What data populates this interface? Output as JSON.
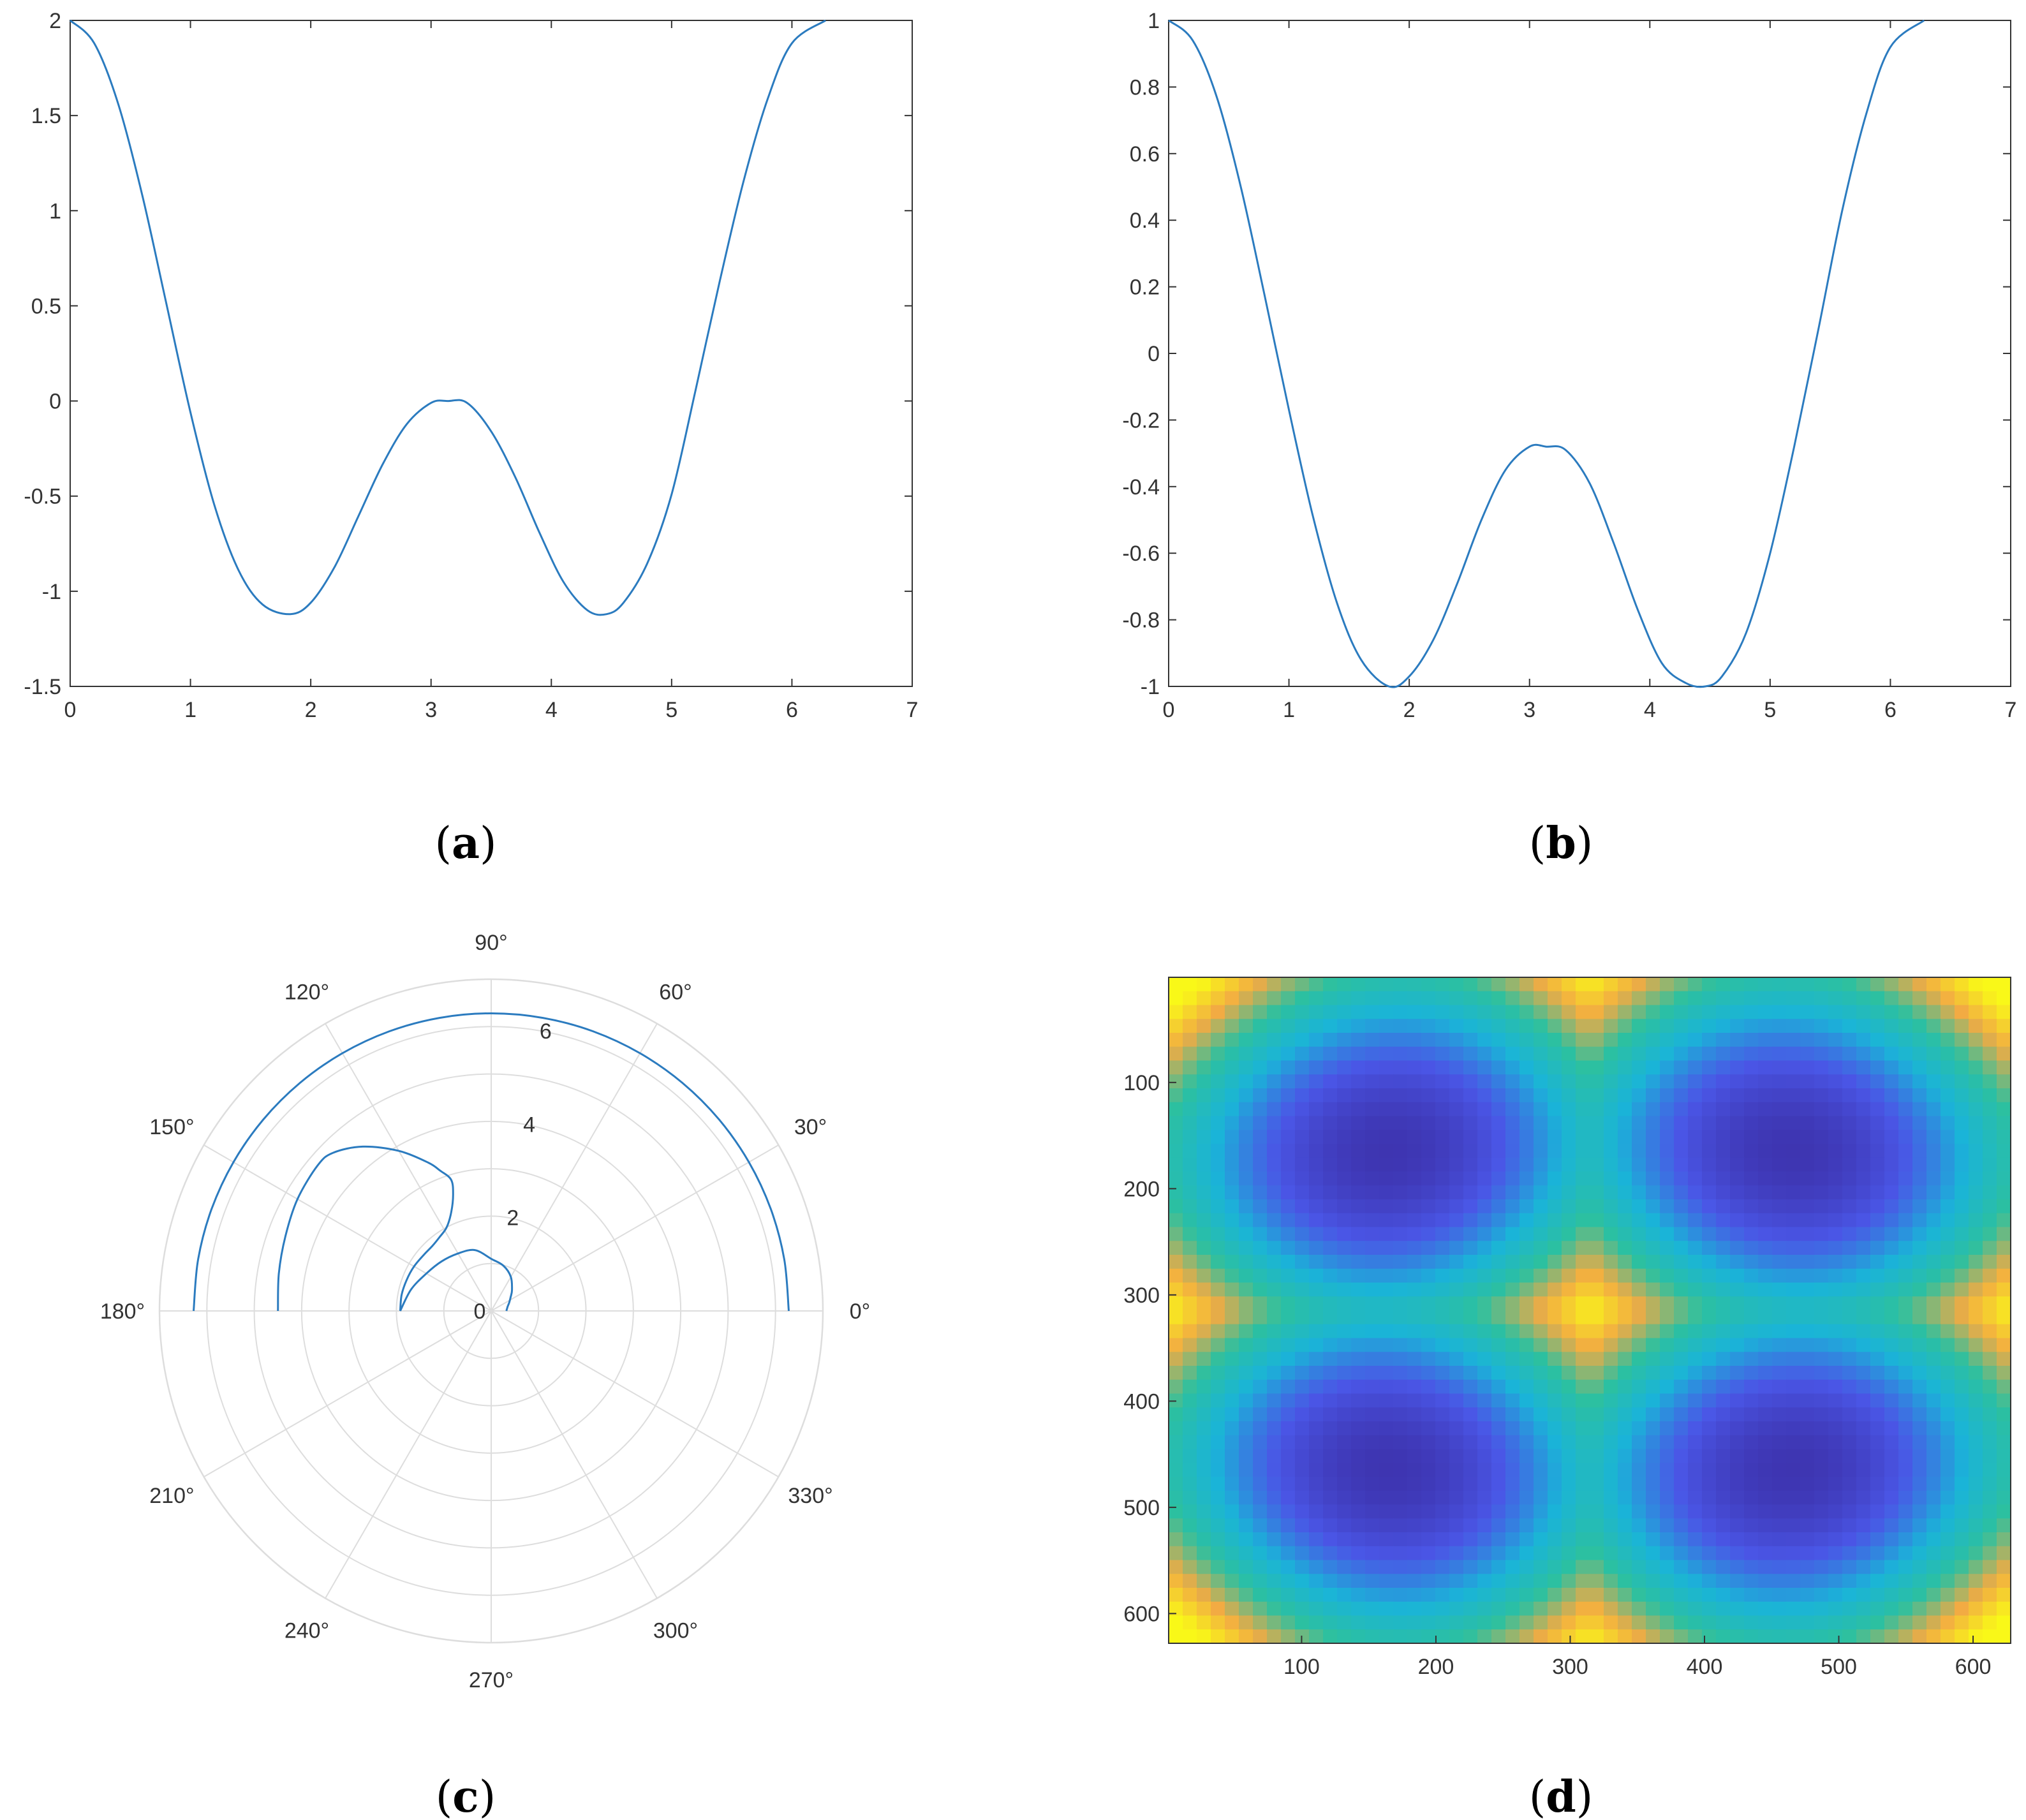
{
  "colors": {
    "line": "#2b7bbf",
    "axis": "#333333",
    "grid": "#dddddd",
    "tick_text": "#333333",
    "colormap": [
      "#3b2ea6",
      "#4a56e6",
      "#1ab4d8",
      "#2cc0a0",
      "#f2ab43",
      "#f9f818"
    ]
  },
  "chart_data": [
    {
      "panel": "a",
      "type": "line",
      "xlim": [
        0,
        7
      ],
      "ylim": [
        -1.5,
        2
      ],
      "xticks": [
        0,
        1,
        2,
        3,
        4,
        5,
        6,
        7
      ],
      "yticks": [
        -1.5,
        -1,
        -0.5,
        0,
        0.5,
        1,
        1.5,
        2
      ],
      "xtick_labels": [
        "0",
        "1",
        "2",
        "3",
        "4",
        "5",
        "6",
        "7"
      ],
      "ytick_labels": [
        "-1.5",
        "-1",
        "-0.5",
        "0",
        "0.5",
        "1",
        "1.5",
        "2"
      ],
      "series": [
        {
          "x": [
            0,
            0.2,
            0.4,
            0.6,
            0.8,
            1.0,
            1.2,
            1.4,
            1.6,
            1.83,
            2.0,
            2.2,
            2.4,
            2.6,
            2.8,
            3.0,
            3.14,
            3.3,
            3.5,
            3.7,
            3.9,
            4.1,
            4.3,
            4.46,
            4.6,
            4.8,
            5.0,
            5.2,
            5.4,
            5.6,
            5.8,
            6.0,
            6.28
          ],
          "y": [
            2,
            1.88,
            1.56,
            1.08,
            0.51,
            -0.06,
            -0.55,
            -0.89,
            -1.07,
            -1.12,
            -1.06,
            -0.87,
            -0.6,
            -0.33,
            -0.12,
            -0.01,
            0,
            -0.01,
            -0.16,
            -0.4,
            -0.69,
            -0.95,
            -1.1,
            -1.12,
            -1.06,
            -0.85,
            -0.49,
            0.06,
            0.63,
            1.16,
            1.59,
            1.88,
            2
          ]
        }
      ]
    },
    {
      "panel": "b",
      "type": "line",
      "xlim": [
        0,
        7
      ],
      "ylim": [
        -1,
        1
      ],
      "xticks": [
        0,
        1,
        2,
        3,
        4,
        5,
        6,
        7
      ],
      "yticks": [
        -1,
        -0.8,
        -0.6,
        -0.4,
        -0.2,
        0,
        0.2,
        0.4,
        0.6,
        0.8,
        1
      ],
      "xtick_labels": [
        "0",
        "1",
        "2",
        "3",
        "4",
        "5",
        "6",
        "7"
      ],
      "ytick_labels": [
        "-1",
        "-0.8",
        "-0.6",
        "-0.4",
        "-0.2",
        "0",
        "0.2",
        "0.4",
        "0.6",
        "0.8",
        "1"
      ],
      "series": [
        {
          "x": [
            0,
            0.2,
            0.4,
            0.6,
            0.8,
            1.0,
            1.2,
            1.4,
            1.6,
            1.83,
            2.0,
            2.2,
            2.4,
            2.6,
            2.8,
            3.0,
            3.14,
            3.3,
            3.5,
            3.7,
            3.9,
            4.1,
            4.3,
            4.46,
            4.6,
            4.8,
            5.0,
            5.2,
            5.4,
            5.6,
            5.8,
            6.0,
            6.28
          ],
          "y": [
            1,
            0.94,
            0.77,
            0.5,
            0.17,
            -0.17,
            -0.49,
            -0.75,
            -0.92,
            -1,
            -0.97,
            -0.86,
            -0.69,
            -0.5,
            -0.35,
            -0.28,
            -0.28,
            -0.29,
            -0.39,
            -0.57,
            -0.77,
            -0.93,
            -0.99,
            -1,
            -0.97,
            -0.84,
            -0.6,
            -0.28,
            0.07,
            0.43,
            0.72,
            0.92,
            1
          ]
        }
      ]
    },
    {
      "panel": "c",
      "type": "polar",
      "rlim": [
        0,
        7
      ],
      "rticks": [
        0,
        2,
        4,
        6
      ],
      "rtick_labels": [
        "0",
        "2",
        "4",
        "6"
      ],
      "theta_labels": [
        "0°",
        "30°",
        "60°",
        "90°",
        "120°",
        "150°",
        "180°",
        "210°",
        "240°",
        "270°",
        "300°",
        "330°"
      ],
      "series": [
        {
          "theta_deg": [
            0,
            10,
            20,
            30,
            40,
            50,
            60,
            70,
            80,
            90,
            100,
            110,
            120,
            130,
            140,
            150,
            160,
            170,
            180
          ],
          "r": [
            6.28,
            6.28,
            6.28,
            6.28,
            6.28,
            6.28,
            6.28,
            6.28,
            6.28,
            6.28,
            6.28,
            6.28,
            6.28,
            6.28,
            6.28,
            6.28,
            6.28,
            6.28,
            6.28
          ]
        },
        {
          "theta_deg": [
            180,
            170,
            160,
            150,
            140,
            135,
            128,
            120,
            113,
            110,
            107,
            108,
            112,
            118,
            125,
            132,
            140,
            150,
            160,
            170,
            180
          ],
          "r": [
            4.5,
            4.55,
            4.62,
            4.72,
            4.78,
            4.72,
            4.4,
            3.9,
            3.4,
            3.15,
            2.9,
            2.6,
            2.25,
            2.0,
            1.9,
            1.85,
            1.85,
            1.88,
            1.9,
            1.92,
            1.92
          ]
        },
        {
          "theta_deg": [
            180,
            165,
            150,
            135,
            120,
            105,
            90,
            75,
            60,
            45,
            35,
            25,
            15,
            5,
            0
          ],
          "r": [
            1.92,
            1.75,
            1.58,
            1.48,
            1.4,
            1.33,
            1.1,
            0.99,
            0.83,
            0.62,
            0.5,
            0.42,
            0.36,
            0.33,
            0.32
          ]
        }
      ]
    },
    {
      "panel": "d",
      "type": "heatmap",
      "xlim": [
        1,
        628
      ],
      "ylim": [
        1,
        628
      ],
      "xticks": [
        100,
        200,
        300,
        400,
        500,
        600
      ],
      "yticks": [
        100,
        200,
        300,
        400,
        500,
        600
      ],
      "xtick_labels": [
        "100",
        "200",
        "300",
        "400",
        "500",
        "600"
      ],
      "ytick_labels": [
        "100",
        "200",
        "300",
        "400",
        "500",
        "600"
      ],
      "colorscale": [
        "#3b2ea6",
        "#4a56e6",
        "#1ab4d8",
        "#2cc0a0",
        "#f2ab43",
        "#f9f818"
      ],
      "y_axis_reversed": true
    }
  ],
  "captions": {
    "a": {
      "open": "(",
      "letter": "a",
      "close": ")"
    },
    "b": {
      "open": "(",
      "letter": "b",
      "close": ")"
    },
    "c": {
      "open": "(",
      "letter": "c",
      "close": ")"
    },
    "d": {
      "open": "(",
      "letter": "d",
      "close": ")"
    }
  }
}
